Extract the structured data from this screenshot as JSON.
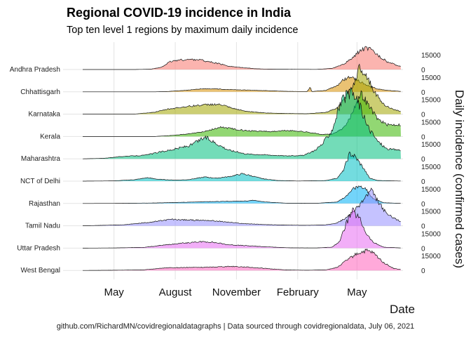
{
  "title": "Regional COVID-19 incidence in India",
  "subtitle": "Top ten level 1 regions by maximum daily incidence",
  "caption": "github.com/RichardMN/covidregionaldatagraphs | Data sourced through covidregionaldata, July 06, 2021",
  "chart_data": {
    "type": "area",
    "xlabel": "Date",
    "ylabel": "Daily incidence (confirmed cases)",
    "x_range": [
      "2020-03-15",
      "2021-07-06"
    ],
    "x_ticks": [
      {
        "date": "2020-05-01",
        "label": "May"
      },
      {
        "date": "2020-08-01",
        "label": "August"
      },
      {
        "date": "2020-11-01",
        "label": "November"
      },
      {
        "date": "2021-02-01",
        "label": "February"
      },
      {
        "date": "2021-05-01",
        "label": "May"
      }
    ],
    "y_ticks": [
      0,
      15000
    ],
    "grid": true,
    "series": [
      {
        "name": "Andhra Pradesh",
        "color": "#f8766d",
        "points": [
          [
            "2020-03-15",
            0
          ],
          [
            "2020-06-01",
            0
          ],
          [
            "2020-06-25",
            400
          ],
          [
            "2020-07-10",
            2000
          ],
          [
            "2020-07-25",
            8000
          ],
          [
            "2020-08-05",
            9500
          ],
          [
            "2020-08-20",
            10000
          ],
          [
            "2020-09-05",
            10200
          ],
          [
            "2020-09-20",
            8000
          ],
          [
            "2020-10-05",
            6000
          ],
          [
            "2020-10-20",
            3500
          ],
          [
            "2020-11-05",
            2200
          ],
          [
            "2020-12-01",
            700
          ],
          [
            "2021-01-01",
            300
          ],
          [
            "2021-03-01",
            150
          ],
          [
            "2021-03-25",
            1200
          ],
          [
            "2021-04-10",
            5000
          ],
          [
            "2021-04-25",
            12000
          ],
          [
            "2021-05-05",
            19000
          ],
          [
            "2021-05-15",
            22000
          ],
          [
            "2021-05-22",
            20000
          ],
          [
            "2021-06-01",
            15000
          ],
          [
            "2021-06-15",
            8000
          ],
          [
            "2021-07-01",
            4000
          ],
          [
            "2021-07-06",
            3000
          ]
        ]
      },
      {
        "name": "Chhattisgarh",
        "color": "#d89000",
        "points": [
          [
            "2020-03-15",
            0
          ],
          [
            "2020-07-01",
            0
          ],
          [
            "2020-07-20",
            300
          ],
          [
            "2020-08-15",
            1500
          ],
          [
            "2020-09-10",
            3000
          ],
          [
            "2020-09-25",
            3200
          ],
          [
            "2020-10-15",
            2500
          ],
          [
            "2020-11-15",
            1800
          ],
          [
            "2020-12-15",
            1200
          ],
          [
            "2021-01-15",
            500
          ],
          [
            "2021-02-15",
            300
          ],
          [
            "2021-02-20",
            5000
          ],
          [
            "2021-02-22",
            300
          ],
          [
            "2021-03-15",
            1500
          ],
          [
            "2021-04-01",
            6000
          ],
          [
            "2021-04-10",
            12000
          ],
          [
            "2021-04-20",
            15000
          ],
          [
            "2021-05-01",
            12000
          ],
          [
            "2021-05-15",
            7000
          ],
          [
            "2021-06-01",
            3000
          ],
          [
            "2021-06-15",
            1500
          ],
          [
            "2021-07-06",
            500
          ]
        ]
      },
      {
        "name": "Karnataka",
        "color": "#a3a500",
        "points": [
          [
            "2020-03-15",
            0
          ],
          [
            "2020-06-01",
            100
          ],
          [
            "2020-07-01",
            2000
          ],
          [
            "2020-07-20",
            5000
          ],
          [
            "2020-08-15",
            7500
          ],
          [
            "2020-09-05",
            9000
          ],
          [
            "2020-09-25",
            10000
          ],
          [
            "2020-10-10",
            9500
          ],
          [
            "2020-10-25",
            6000
          ],
          [
            "2020-11-15",
            3000
          ],
          [
            "2020-12-15",
            1200
          ],
          [
            "2021-01-15",
            700
          ],
          [
            "2021-02-15",
            450
          ],
          [
            "2021-03-15",
            1800
          ],
          [
            "2021-04-01",
            6000
          ],
          [
            "2021-04-15",
            18000
          ],
          [
            "2021-04-28",
            34000
          ],
          [
            "2021-05-05",
            49000
          ],
          [
            "2021-05-15",
            40000
          ],
          [
            "2021-05-25",
            25000
          ],
          [
            "2021-06-10",
            10000
          ],
          [
            "2021-06-25",
            4500
          ],
          [
            "2021-07-06",
            3000
          ]
        ]
      },
      {
        "name": "Kerala",
        "color": "#39b600",
        "points": [
          [
            "2020-03-15",
            0
          ],
          [
            "2020-07-01",
            0
          ],
          [
            "2020-07-25",
            1000
          ],
          [
            "2020-08-20",
            2500
          ],
          [
            "2020-09-10",
            4500
          ],
          [
            "2020-09-25",
            7000
          ],
          [
            "2020-10-10",
            9500
          ],
          [
            "2020-10-25",
            8000
          ],
          [
            "2020-11-15",
            6000
          ],
          [
            "2020-12-05",
            5500
          ],
          [
            "2020-12-25",
            5000
          ],
          [
            "2021-01-15",
            6000
          ],
          [
            "2021-02-01",
            5500
          ],
          [
            "2021-02-20",
            4000
          ],
          [
            "2021-03-10",
            2000
          ],
          [
            "2021-03-25",
            2500
          ],
          [
            "2021-04-10",
            8000
          ],
          [
            "2021-04-20",
            18000
          ],
          [
            "2021-04-30",
            35000
          ],
          [
            "2021-05-08",
            43000
          ],
          [
            "2021-05-20",
            30000
          ],
          [
            "2021-06-01",
            18000
          ],
          [
            "2021-06-15",
            12000
          ],
          [
            "2021-07-06",
            12000
          ]
        ]
      },
      {
        "name": "Maharashtra",
        "color": "#00bf7d",
        "points": [
          [
            "2020-03-15",
            0
          ],
          [
            "2020-04-15",
            500
          ],
          [
            "2020-05-15",
            2500
          ],
          [
            "2020-06-15",
            3500
          ],
          [
            "2020-07-10",
            7000
          ],
          [
            "2020-08-01",
            10000
          ],
          [
            "2020-08-25",
            14000
          ],
          [
            "2020-09-15",
            22000
          ],
          [
            "2020-10-01",
            16000
          ],
          [
            "2020-10-20",
            9000
          ],
          [
            "2020-11-15",
            5000
          ],
          [
            "2020-12-15",
            4000
          ],
          [
            "2021-01-15",
            3000
          ],
          [
            "2021-02-10",
            3500
          ],
          [
            "2021-02-25",
            8000
          ],
          [
            "2021-03-10",
            15000
          ],
          [
            "2021-03-25",
            30000
          ],
          [
            "2021-04-05",
            55000
          ],
          [
            "2021-04-15",
            63000
          ],
          [
            "2021-04-25",
            66000
          ],
          [
            "2021-05-05",
            55000
          ],
          [
            "2021-05-15",
            35000
          ],
          [
            "2021-06-01",
            18000
          ],
          [
            "2021-06-15",
            10000
          ],
          [
            "2021-07-06",
            9000
          ]
        ]
      },
      {
        "name": "NCT of Delhi",
        "color": "#00bfc4",
        "points": [
          [
            "2020-03-15",
            0
          ],
          [
            "2020-05-01",
            300
          ],
          [
            "2020-06-01",
            1500
          ],
          [
            "2020-06-20",
            3500
          ],
          [
            "2020-07-05",
            2000
          ],
          [
            "2020-08-01",
            1000
          ],
          [
            "2020-08-20",
            1500
          ],
          [
            "2020-09-15",
            4200
          ],
          [
            "2020-10-01",
            3000
          ],
          [
            "2020-10-20",
            4500
          ],
          [
            "2020-11-10",
            7500
          ],
          [
            "2020-11-20",
            6000
          ],
          [
            "2020-12-10",
            2500
          ],
          [
            "2021-01-01",
            700
          ],
          [
            "2021-02-01",
            150
          ],
          [
            "2021-03-15",
            600
          ],
          [
            "2021-04-01",
            3000
          ],
          [
            "2021-04-10",
            10000
          ],
          [
            "2021-04-20",
            28000
          ],
          [
            "2021-04-28",
            25000
          ],
          [
            "2021-05-10",
            14000
          ],
          [
            "2021-05-20",
            3000
          ],
          [
            "2021-06-01",
            700
          ],
          [
            "2021-07-06",
            100
          ]
        ]
      },
      {
        "name": "Rajasthan",
        "color": "#00b0f6",
        "points": [
          [
            "2020-03-15",
            0
          ],
          [
            "2020-05-01",
            100
          ],
          [
            "2020-07-01",
            500
          ],
          [
            "2020-08-15",
            1200
          ],
          [
            "2020-09-15",
            1800
          ],
          [
            "2020-10-15",
            2100
          ],
          [
            "2020-11-15",
            2500
          ],
          [
            "2020-11-25",
            3300
          ],
          [
            "2020-12-15",
            1500
          ],
          [
            "2021-01-15",
            300
          ],
          [
            "2021-03-01",
            200
          ],
          [
            "2021-04-01",
            1500
          ],
          [
            "2021-04-15",
            7000
          ],
          [
            "2021-04-25",
            15000
          ],
          [
            "2021-05-05",
            18000
          ],
          [
            "2021-05-15",
            14000
          ],
          [
            "2021-05-25",
            5000
          ],
          [
            "2021-06-10",
            800
          ],
          [
            "2021-07-06",
            100
          ]
        ]
      },
      {
        "name": "Tamil Nadu",
        "color": "#9590ff",
        "points": [
          [
            "2020-03-15",
            0
          ],
          [
            "2020-04-15",
            500
          ],
          [
            "2020-05-15",
            1000
          ],
          [
            "2020-06-15",
            3000
          ],
          [
            "2020-07-01",
            4200
          ],
          [
            "2020-07-25",
            6500
          ],
          [
            "2020-08-20",
            5900
          ],
          [
            "2020-09-20",
            5500
          ],
          [
            "2020-10-15",
            4000
          ],
          [
            "2020-11-10",
            2300
          ],
          [
            "2020-12-15",
            1200
          ],
          [
            "2021-01-15",
            700
          ],
          [
            "2021-02-15",
            500
          ],
          [
            "2021-03-15",
            900
          ],
          [
            "2021-04-01",
            3000
          ],
          [
            "2021-04-15",
            8000
          ],
          [
            "2021-05-01",
            18000
          ],
          [
            "2021-05-15",
            30000
          ],
          [
            "2021-05-22",
            36000
          ],
          [
            "2021-06-01",
            25000
          ],
          [
            "2021-06-15",
            12000
          ],
          [
            "2021-07-06",
            4000
          ]
        ]
      },
      {
        "name": "Uttar Pradesh",
        "color": "#e76bf3",
        "points": [
          [
            "2020-03-15",
            0
          ],
          [
            "2020-05-01",
            200
          ],
          [
            "2020-06-15",
            800
          ],
          [
            "2020-07-15",
            3000
          ],
          [
            "2020-08-10",
            5000
          ],
          [
            "2020-09-10",
            6500
          ],
          [
            "2020-09-25",
            6200
          ],
          [
            "2020-10-20",
            3500
          ],
          [
            "2020-11-20",
            2300
          ],
          [
            "2020-12-20",
            1200
          ],
          [
            "2021-01-20",
            300
          ],
          [
            "2021-03-01",
            200
          ],
          [
            "2021-03-25",
            1000
          ],
          [
            "2021-04-05",
            7000
          ],
          [
            "2021-04-15",
            25000
          ],
          [
            "2021-04-24",
            38000
          ],
          [
            "2021-05-05",
            30000
          ],
          [
            "2021-05-15",
            15000
          ],
          [
            "2021-05-25",
            6000
          ],
          [
            "2021-06-10",
            1000
          ],
          [
            "2021-07-06",
            200
          ]
        ]
      },
      {
        "name": "West Bengal",
        "color": "#ff62bc",
        "points": [
          [
            "2020-03-15",
            0
          ],
          [
            "2020-05-01",
            200
          ],
          [
            "2020-06-15",
            600
          ],
          [
            "2020-07-15",
            2500
          ],
          [
            "2020-08-15",
            3000
          ],
          [
            "2020-09-15",
            3200
          ],
          [
            "2020-10-15",
            4000
          ],
          [
            "2020-10-28",
            4100
          ],
          [
            "2020-11-15",
            3500
          ],
          [
            "2020-12-15",
            2000
          ],
          [
            "2021-01-15",
            500
          ],
          [
            "2021-02-15",
            200
          ],
          [
            "2021-03-15",
            600
          ],
          [
            "2021-04-01",
            3000
          ],
          [
            "2021-04-15",
            10000
          ],
          [
            "2021-05-01",
            17000
          ],
          [
            "2021-05-15",
            20000
          ],
          [
            "2021-05-25",
            18000
          ],
          [
            "2021-06-10",
            8000
          ],
          [
            "2021-06-25",
            2000
          ],
          [
            "2021-07-06",
            1000
          ]
        ]
      }
    ]
  }
}
